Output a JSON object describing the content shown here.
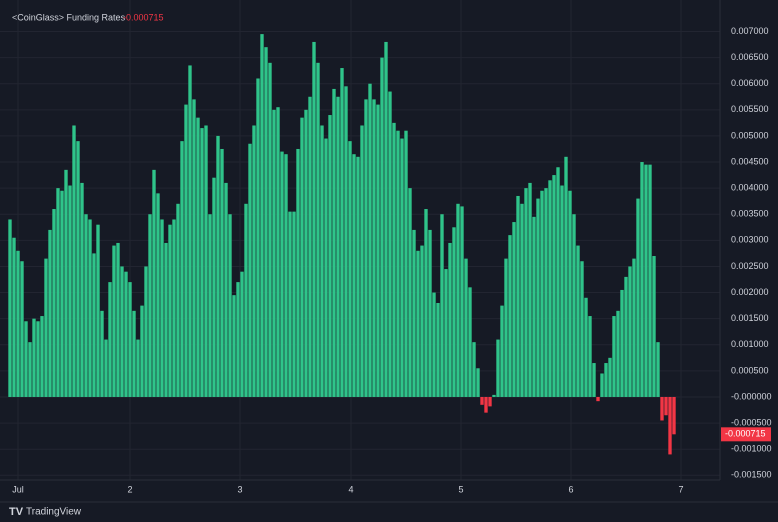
{
  "chart_data": {
    "type": "bar",
    "title": "<CoinGlass> Funding Rates",
    "last_value": {
      "value": -0.000715,
      "label": "-0.000715"
    },
    "up_color": "#2fc48a",
    "down_color": "#f23645",
    "grid": true,
    "values": [
      0.0034,
      0.00305,
      0.0028,
      0.0026,
      0.00145,
      0.00105,
      0.0015,
      0.00145,
      0.00155,
      0.00265,
      0.0032,
      0.0036,
      0.004,
      0.00395,
      0.00435,
      0.00405,
      0.0052,
      0.0049,
      0.0041,
      0.0035,
      0.0034,
      0.00275,
      0.0033,
      0.00165,
      0.0011,
      0.0022,
      0.0029,
      0.00295,
      0.0025,
      0.0024,
      0.0022,
      0.00165,
      0.0011,
      0.00175,
      0.0025,
      0.0035,
      0.00435,
      0.0039,
      0.0034,
      0.00295,
      0.0033,
      0.0034,
      0.0037,
      0.0049,
      0.0056,
      0.00635,
      0.0057,
      0.00535,
      0.00515,
      0.0052,
      0.0035,
      0.0042,
      0.005,
      0.00475,
      0.0041,
      0.0035,
      0.00195,
      0.0022,
      0.0024,
      0.0037,
      0.00485,
      0.0052,
      0.0061,
      0.00695,
      0.0067,
      0.0064,
      0.0055,
      0.00555,
      0.0047,
      0.00465,
      0.00355,
      0.00355,
      0.00475,
      0.00535,
      0.0055,
      0.00575,
      0.0068,
      0.0064,
      0.0052,
      0.00495,
      0.0054,
      0.0059,
      0.00575,
      0.0063,
      0.00595,
      0.0049,
      0.00465,
      0.0046,
      0.0052,
      0.0057,
      0.006,
      0.0057,
      0.0056,
      0.0065,
      0.0068,
      0.00585,
      0.00525,
      0.0051,
      0.00495,
      0.0051,
      0.004,
      0.0032,
      0.0028,
      0.0029,
      0.0036,
      0.0032,
      0.002,
      0.0018,
      0.0035,
      0.00245,
      0.00295,
      0.00325,
      0.0037,
      0.00365,
      0.00265,
      0.0021,
      0.00105,
      0.00055,
      -0.00015,
      -0.0003,
      -0.00018,
      4e-05,
      0.0011,
      0.00175,
      0.00265,
      0.0031,
      0.00335,
      0.00385,
      0.0037,
      0.004,
      0.0041,
      0.00345,
      0.0038,
      0.00395,
      0.004,
      0.00415,
      0.00425,
      0.0044,
      0.00405,
      0.0046,
      0.00395,
      0.0035,
      0.0029,
      0.0026,
      0.0019,
      0.00155,
      0.00065,
      -8e-05,
      0.00045,
      0.00065,
      0.00075,
      0.00155,
      0.00165,
      0.00205,
      0.0023,
      0.0025,
      0.00265,
      0.0038,
      0.0045,
      0.00445,
      0.00445,
      0.0027,
      0.00105,
      -0.00045,
      -0.00035,
      -0.0011,
      -0.000715
    ],
    "xlim": [
      -2.5,
      177.5
    ],
    "xticks": [
      {
        "value": 2,
        "label": "Jul"
      },
      {
        "value": 30,
        "label": "2"
      },
      {
        "value": 57.5,
        "label": "3"
      },
      {
        "value": 85.25,
        "label": "4"
      },
      {
        "value": 112.75,
        "label": "5"
      },
      {
        "value": 140.25,
        "label": "6"
      },
      {
        "value": 167.75,
        "label": "7"
      }
    ],
    "ylim": [
      -0.00159,
      0.00745
    ],
    "yticks": [
      {
        "value": 0.007,
        "label": "0.007000"
      },
      {
        "value": 0.0065,
        "label": "0.006500"
      },
      {
        "value": 0.006,
        "label": "0.006000"
      },
      {
        "value": 0.0055,
        "label": "0.005500"
      },
      {
        "value": 0.005,
        "label": "0.005000"
      },
      {
        "value": 0.0045,
        "label": "0.004500"
      },
      {
        "value": 0.004,
        "label": "0.004000"
      },
      {
        "value": 0.0035,
        "label": "0.003500"
      },
      {
        "value": 0.003,
        "label": "0.003000"
      },
      {
        "value": 0.0025,
        "label": "0.002500"
      },
      {
        "value": 0.002,
        "label": "0.002000"
      },
      {
        "value": 0.0015,
        "label": "0.001500"
      },
      {
        "value": 0.001,
        "label": "0.001000"
      },
      {
        "value": 0.0005,
        "label": "0.000500"
      },
      {
        "value": 0,
        "label": "-0.000000"
      },
      {
        "value": -0.0005,
        "label": "-0.000500"
      },
      {
        "value": -0.001,
        "label": "-0.001000"
      },
      {
        "value": -0.0015,
        "label": "-0.001500"
      }
    ],
    "footer": "TradingView"
  }
}
